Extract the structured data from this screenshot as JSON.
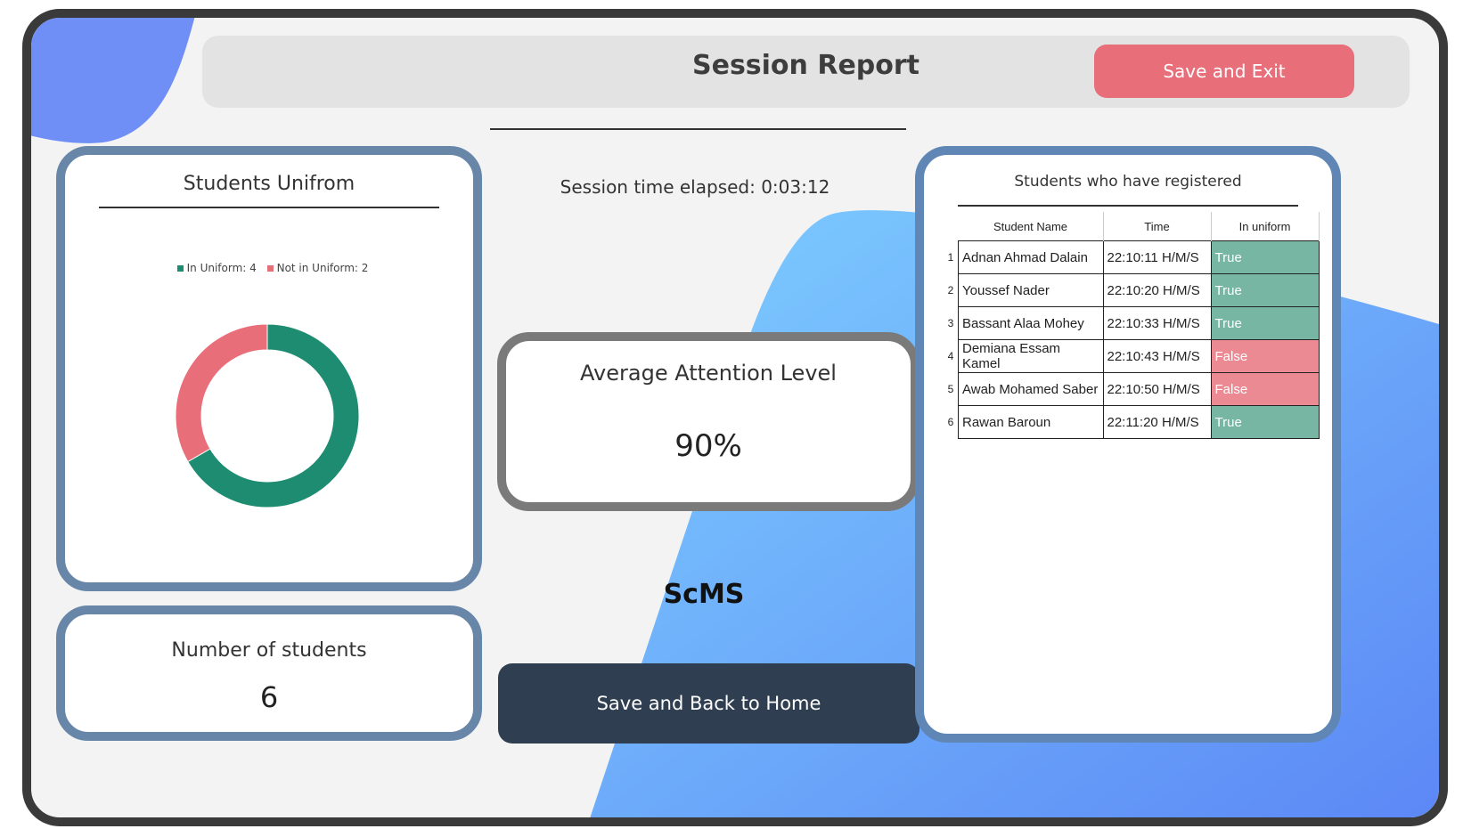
{
  "header": {
    "title": "Session Report",
    "save_exit_label": "Save and Exit"
  },
  "uniform_card": {
    "title": "Students Unifrom",
    "legend": [
      {
        "label": "In Uniform: 4",
        "color": "#1e8c70"
      },
      {
        "label": "Not in Uniform: 2",
        "color": "#e86e79"
      }
    ]
  },
  "chart_data": {
    "type": "pie",
    "labels": [
      "In Uniform",
      "Not in Uniform"
    ],
    "values": [
      4,
      2
    ],
    "colors": [
      "#1e8c70",
      "#e86e79"
    ]
  },
  "students_card": {
    "title": "Number of students",
    "value": "6"
  },
  "session": {
    "elapsed_label": "Session time elapsed: 0:03:12"
  },
  "attention": {
    "title": "Average Attention Level",
    "value": "90%"
  },
  "brand": "ScMS",
  "home_button_label": "Save and Back to Home",
  "registered": {
    "title": "Students who have registered",
    "columns": [
      "Student Name",
      "Time",
      "In uniform"
    ],
    "rows": [
      {
        "index": "1",
        "name": "Adnan Ahmad Dalain",
        "time": "22:10:11 H/M/S",
        "uniform": "True"
      },
      {
        "index": "2",
        "name": "Youssef Nader",
        "time": "22:10:20 H/M/S",
        "uniform": "True"
      },
      {
        "index": "3",
        "name": "Bassant Alaa Mohey",
        "time": "22:10:33 H/M/S",
        "uniform": "True"
      },
      {
        "index": "4",
        "name": "Demiana Essam Kamel",
        "time": "22:10:43 H/M/S",
        "uniform": "False"
      },
      {
        "index": "5",
        "name": "Awab Mohamed Saber",
        "time": "22:10:50 H/M/S",
        "uniform": "False"
      },
      {
        "index": "6",
        "name": "Rawan Baroun",
        "time": "22:11:20 H/M/S",
        "uniform": "True"
      }
    ]
  },
  "colors": {
    "accent_red": "#e86e79",
    "dark_button": "#2f3e50",
    "card_border": "#6886a8",
    "true_cell": "#76b6a3",
    "false_cell": "#ec8a93"
  }
}
